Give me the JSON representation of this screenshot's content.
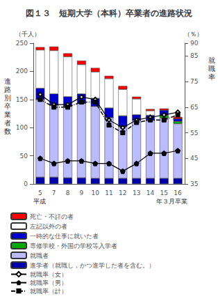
{
  "chart_data": {
    "type": "bar",
    "title": "図１３　短期大学（本科）卒業者の進路状況",
    "ylabel": "進路別卒業者数",
    "y2label": "就職率",
    "annotations": [
      "（千人）",
      "（％）",
      "平成",
      "年３月卒業"
    ],
    "categories": [
      "5",
      "7",
      "8",
      "9",
      "10",
      "11",
      "12",
      "13",
      "14",
      "15",
      "16"
    ],
    "stacked": true,
    "grid": false,
    "legend": "bottom",
    "ylim": [
      0,
      250
    ],
    "yticks": [
      0,
      50,
      100,
      150,
      200,
      250
    ],
    "y2lim": [
      35,
      90
    ],
    "y2ticks": [
      35,
      45,
      55,
      65,
      75,
      85,
      90
    ],
    "series": [
      {
        "name": "進学者（就職し，かつ進学した者を含む。）",
        "color": "#0000AA",
        "values": [
          12,
          12,
          11,
          11,
          10,
          10,
          10,
          10,
          10,
          10,
          10
        ]
      },
      {
        "name": "就職者",
        "color": "#BBBBFF",
        "values": [
          138,
          128,
          127,
          132,
          128,
          108,
          92,
          103,
          103,
          107,
          97
        ]
      },
      {
        "name": "専修学校・外国の学校等入学者",
        "color": "#00AA00",
        "values": [
          0,
          0,
          0,
          0,
          0,
          0,
          0,
          0,
          0,
          5,
          4
        ]
      },
      {
        "name": "一時的な仕事に就いた者",
        "color": "#0000CC",
        "values": [
          20,
          20,
          17,
          17,
          14,
          17,
          19,
          10,
          9,
          9,
          5
        ]
      },
      {
        "name": "左記以外の者",
        "color": "#FFFFFF",
        "values": [
          68,
          77,
          71,
          52,
          47,
          52,
          47,
          28,
          8,
          0,
          0
        ]
      },
      {
        "name": "死亡・不詳の者",
        "color": "#FF0000",
        "values": [
          5,
          7,
          6,
          7,
          7,
          5,
          6,
          4,
          3,
          3,
          3
        ]
      },
      {
        "name": "就職率（女）",
        "type": "line",
        "axis": "y2",
        "color": "#000000",
        "marker": "diamond_open",
        "line_style": "solid",
        "values": [
          70,
          66,
          66,
          69,
          68,
          60,
          57,
          60,
          61,
          62,
          63
        ]
      },
      {
        "name": "就職率（男）",
        "type": "line",
        "axis": "y2",
        "color": "#000000",
        "marker": "pentagon",
        "line_style": "solid",
        "values": [
          45,
          43,
          44,
          44,
          43,
          43,
          40,
          43,
          47,
          47,
          48
        ]
      },
      {
        "name": "就職率（計）",
        "type": "line",
        "axis": "y2",
        "color": "#000000",
        "marker": "square",
        "line_style": "dashdot",
        "values": [
          68,
          65,
          65,
          67,
          67,
          58,
          55,
          59,
          60,
          60,
          62
        ]
      }
    ]
  }
}
